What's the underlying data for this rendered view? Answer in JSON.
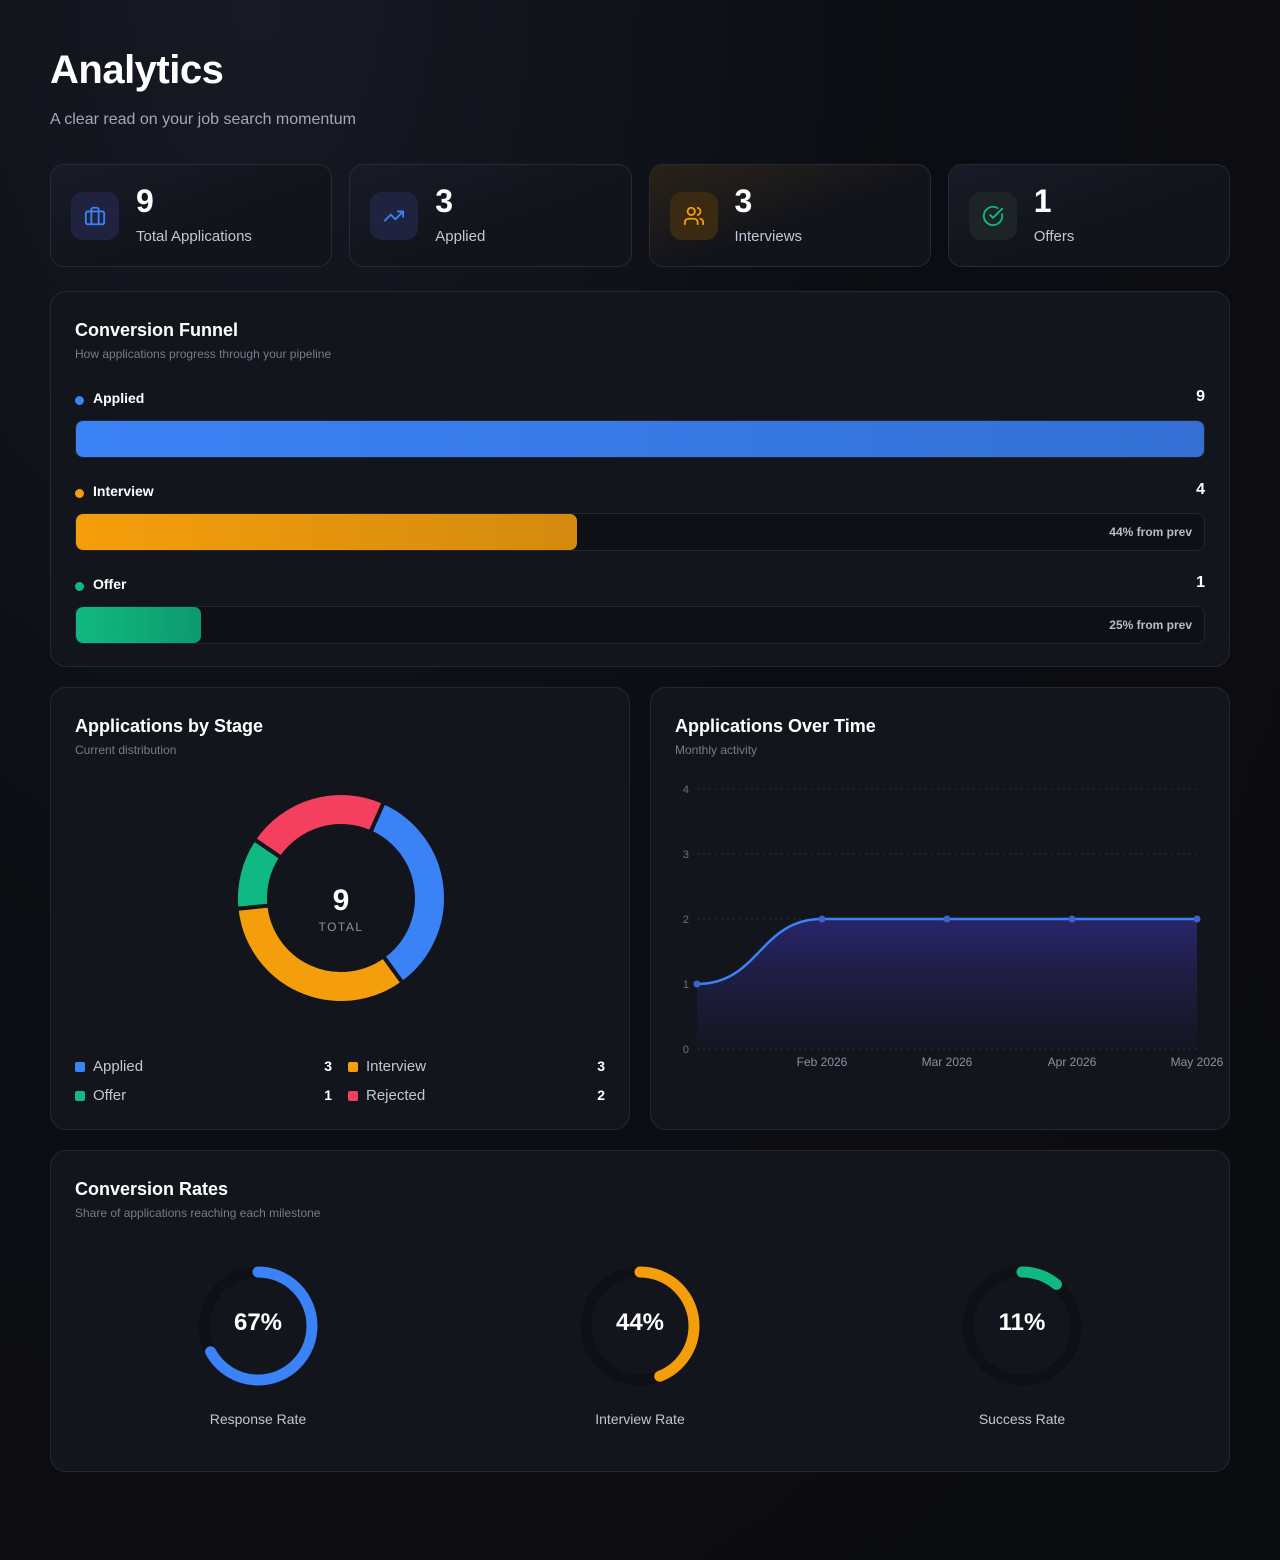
{
  "header": {
    "title": "Analytics",
    "subtitle": "A clear read on your job search momentum"
  },
  "stats": [
    {
      "value": "9",
      "label": "Total Applications",
      "icon": "briefcase-icon",
      "color": "#3b82f6",
      "bg": "#1f2340"
    },
    {
      "value": "3",
      "label": "Applied",
      "icon": "trending-up-icon",
      "color": "#3b82f6",
      "bg": "#1f2340"
    },
    {
      "value": "3",
      "label": "Interviews",
      "icon": "users-icon",
      "color": "#f59e0b",
      "bg": "#3a2a12"
    },
    {
      "value": "1",
      "label": "Offers",
      "icon": "check-circle-icon",
      "color": "#10b981",
      "bg": "#1d2428"
    }
  ],
  "funnel": {
    "title": "Conversion Funnel",
    "subtitle": "How applications progress through your pipeline",
    "stages": [
      {
        "label": "Applied",
        "count": "9",
        "fraction": 1.0,
        "note": "",
        "color": "#3b82f6"
      },
      {
        "label": "Interview",
        "count": "4",
        "fraction": 0.444,
        "note": "44% from prev",
        "color": "#f59e0b"
      },
      {
        "label": "Offer",
        "count": "1",
        "fraction": 0.111,
        "note": "25% from prev",
        "color": "#10b981"
      }
    ]
  },
  "stage_chart": {
    "title": "Applications by Stage",
    "subtitle": "Current distribution",
    "total_value": "9",
    "total_label": "TOTAL",
    "legend": [
      {
        "label": "Applied",
        "value": "3",
        "color": "#3b82f6"
      },
      {
        "label": "Interview",
        "value": "3",
        "color": "#f59e0b"
      },
      {
        "label": "Offer",
        "value": "1",
        "color": "#10b981"
      },
      {
        "label": "Rejected",
        "value": "2",
        "color": "#f43f5e"
      }
    ]
  },
  "time_chart": {
    "title": "Applications Over Time",
    "subtitle": "Monthly activity"
  },
  "rates": {
    "title": "Conversion Rates",
    "subtitle": "Share of applications reaching each milestone",
    "items": [
      {
        "pct": "67%",
        "value": 0.67,
        "label": "Response Rate",
        "color": "#3b82f6"
      },
      {
        "pct": "44%",
        "value": 0.44,
        "label": "Interview Rate",
        "color": "#f59e0b"
      },
      {
        "pct": "11%",
        "value": 0.11,
        "label": "Success Rate",
        "color": "#10b981"
      }
    ]
  },
  "chart_data": [
    {
      "type": "pie",
      "title": "Applications by Stage",
      "categories": [
        "Applied",
        "Interview",
        "Offer",
        "Rejected"
      ],
      "values": [
        3,
        3,
        1,
        2
      ],
      "colors": [
        "#3b82f6",
        "#f59e0b",
        "#10b981",
        "#f43f5e"
      ],
      "donut": true
    },
    {
      "type": "area",
      "title": "Applications Over Time",
      "x": [
        "",
        "Feb 2026",
        "Mar 2026",
        "Apr 2026",
        "May 2026"
      ],
      "values": [
        1,
        2,
        2,
        2,
        2
      ],
      "ylim": [
        0,
        4
      ],
      "yticks": [
        0,
        1,
        2,
        3,
        4
      ],
      "color": "#3b82f6",
      "grid": true
    }
  ]
}
